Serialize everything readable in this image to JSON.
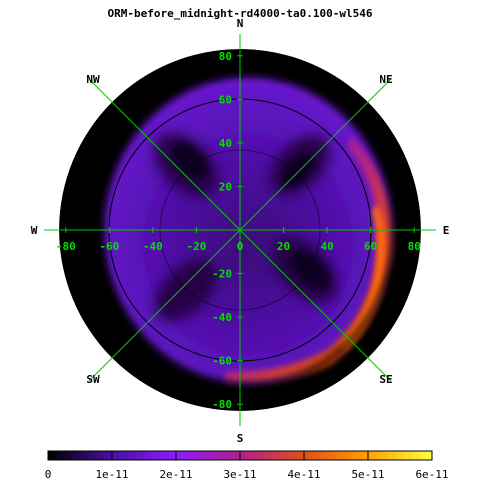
{
  "chart_data": {
    "type": "heatmap",
    "title": "ORM-before_midnight-rd4000-ta0.100-wl546",
    "projection": "polar sky map",
    "directions": {
      "north": "N",
      "south": "S",
      "east": "E",
      "west": "W",
      "northeast": "NE",
      "northwest": "NW",
      "southeast": "SE",
      "southwest": "SW"
    },
    "x_ticks": [
      "-80",
      "-60",
      "-40",
      "-20",
      "0",
      "20",
      "40",
      "60",
      "80"
    ],
    "y_ticks": [
      "80",
      "60",
      "40",
      "20",
      "0",
      "-20",
      "-40",
      "-60",
      "-80"
    ],
    "x_tick_values": [
      -80,
      -60,
      -40,
      -20,
      0,
      20,
      40,
      60,
      80
    ],
    "y_tick_values": [
      80,
      60,
      40,
      20,
      0,
      -20,
      -40,
      -60,
      -80
    ],
    "axis_range": [
      -90,
      90
    ],
    "grid": true,
    "grid_color": "#00c800",
    "tick_label_color": "#00e000",
    "background_color": "#000000",
    "colorbar": {
      "labels": [
        "0",
        "1e-11",
        "2e-11",
        "3e-11",
        "4e-11",
        "5e-11",
        "6e-11"
      ],
      "values": [
        0,
        1e-11,
        2e-11,
        3e-11,
        4e-11,
        5e-11,
        6e-11
      ],
      "range": [
        0,
        6e-11
      ],
      "colors": [
        "#000000",
        "#5a12b8",
        "#8a1cff",
        "#b8208a",
        "#e04a10",
        "#ff9a00",
        "#ffff40"
      ]
    }
  }
}
